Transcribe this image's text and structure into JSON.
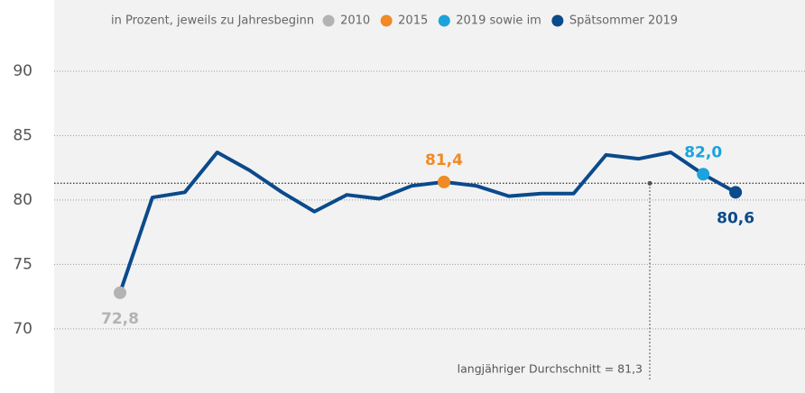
{
  "chart_data": {
    "type": "line",
    "legend_title": "in Prozent, jeweils zu Jahresbeginn",
    "categories": [
      null,
      null,
      null,
      null,
      null,
      null,
      null,
      null,
      null,
      null,
      null,
      null,
      null,
      null,
      null,
      null,
      null,
      null,
      null,
      null
    ],
    "series": [
      {
        "name": null,
        "color": "#0b4a8b",
        "values": [
          72.8,
          80.2,
          80.6,
          83.7,
          82.3,
          80.6,
          79.1,
          80.4,
          80.1,
          81.1,
          81.4,
          81.1,
          80.3,
          80.5,
          80.5,
          83.5,
          83.2,
          83.7,
          82.0,
          80.6
        ],
        "value_labels": [
          "72,8",
          null,
          null,
          null,
          null,
          null,
          null,
          null,
          null,
          null,
          "81,4",
          null,
          null,
          null,
          null,
          null,
          null,
          null,
          "82,0",
          "80,6"
        ]
      }
    ],
    "legend": [
      {
        "name": "2010",
        "color": "#b3b3b3",
        "point": 0
      },
      {
        "name": "2015",
        "color": "#f08a24",
        "point": 10
      },
      {
        "name": "2019 sowie im",
        "color": "#1ba3dc",
        "point": 18
      },
      {
        "name": "Spätsommer 2019",
        "color": "#0b4a8b",
        "point": 19
      }
    ],
    "annotation": {
      "text": "langjähriger Durchschnitt = 81,3",
      "value": 81.3
    },
    "ylim": [
      66,
      95
    ],
    "yticks": [
      70,
      75,
      80,
      85,
      90
    ],
    "grid": true
  }
}
